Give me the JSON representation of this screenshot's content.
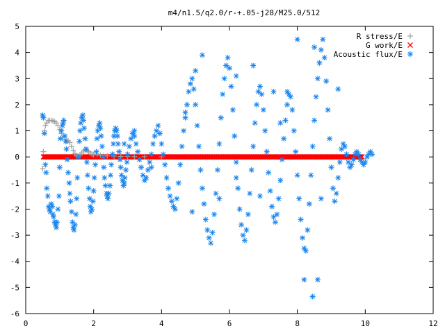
{
  "chart_data": {
    "type": "scatter",
    "title": "m4/n1.5/q2.0/r-+.05-j28/M25.0/512",
    "xlabel": "",
    "ylabel": "",
    "xlim": [
      0,
      12
    ],
    "ylim": [
      -6,
      5
    ],
    "xticks": [
      "0",
      "2",
      "4",
      "6",
      "8",
      "10",
      "12"
    ],
    "yticks": [
      "-6",
      "-5",
      "-4",
      "-3",
      "-2",
      "-1",
      "0",
      "1",
      "2",
      "3",
      "4",
      "5"
    ],
    "grid": false,
    "legend": "top-right",
    "series": [
      {
        "name": "R stress/E",
        "marker": "+",
        "color": "#a0a0a0",
        "points": [
          [
            0.5,
            -0.45
          ],
          [
            0.52,
            0.2
          ],
          [
            0.55,
            1.0
          ],
          [
            0.58,
            1.2
          ],
          [
            0.62,
            1.3
          ],
          [
            0.66,
            1.38
          ],
          [
            0.7,
            1.4
          ],
          [
            0.75,
            1.4
          ],
          [
            0.8,
            1.38
          ],
          [
            0.85,
            1.35
          ],
          [
            0.9,
            1.3
          ],
          [
            0.95,
            1.2
          ],
          [
            1.0,
            1.05
          ],
          [
            1.05,
            0.9
          ],
          [
            1.1,
            0.75
          ],
          [
            1.15,
            0.65
          ],
          [
            1.2,
            0.6
          ],
          [
            1.25,
            0.62
          ],
          [
            1.3,
            0.55
          ],
          [
            1.35,
            0.4
          ],
          [
            1.4,
            0.25
          ],
          [
            1.45,
            0.12
          ],
          [
            1.5,
            0.05
          ],
          [
            1.55,
            0.02
          ],
          [
            1.6,
            0.08
          ],
          [
            1.65,
            0.15
          ],
          [
            1.7,
            0.22
          ],
          [
            1.75,
            0.27
          ],
          [
            1.8,
            0.25
          ],
          [
            1.85,
            0.2
          ],
          [
            1.9,
            0.15
          ],
          [
            1.95,
            0.1
          ],
          [
            2.0,
            0.08
          ],
          [
            2.1,
            0.1
          ],
          [
            2.2,
            0.06
          ],
          [
            2.3,
            0.05
          ],
          [
            2.4,
            0.04
          ],
          [
            2.6,
            0.03
          ],
          [
            2.8,
            0.02
          ],
          [
            3.0,
            0.02
          ],
          [
            3.2,
            0.01
          ],
          [
            3.5,
            0.01
          ],
          [
            4.0,
            0.0
          ]
        ]
      },
      {
        "name": "G work/E",
        "marker": "x",
        "color": "#ff0000",
        "x_start": 0.52,
        "x_end": 9.9,
        "y": 0.0
      },
      {
        "name": "Acoustic flux/E",
        "marker": "*",
        "color": "#1c86ee",
        "points": [
          [
            0.5,
            1.6
          ],
          [
            0.52,
            1.5
          ],
          [
            0.55,
            0.9
          ],
          [
            0.58,
            -0.3
          ],
          [
            0.6,
            -0.6
          ],
          [
            0.62,
            -1.2
          ],
          [
            0.65,
            -1.5
          ],
          [
            0.68,
            -1.9
          ],
          [
            0.7,
            -2.0
          ],
          [
            0.72,
            -2.1
          ],
          [
            0.75,
            -1.8
          ],
          [
            0.78,
            -1.9
          ],
          [
            0.8,
            -2.2
          ],
          [
            0.82,
            -2.3
          ],
          [
            0.85,
            -2.5
          ],
          [
            0.88,
            -2.6
          ],
          [
            0.9,
            -2.7
          ],
          [
            0.92,
            -2.5
          ],
          [
            0.95,
            -2.0
          ],
          [
            0.98,
            -1.5
          ],
          [
            1.0,
            -0.4
          ],
          [
            1.02,
            0.7
          ],
          [
            1.05,
            1.0
          ],
          [
            1.08,
            1.2
          ],
          [
            1.1,
            1.3
          ],
          [
            1.12,
            1.4
          ],
          [
            1.15,
            0.8
          ],
          [
            1.18,
            0.6
          ],
          [
            1.2,
            0.3
          ],
          [
            1.22,
            -0.1
          ],
          [
            1.25,
            -0.6
          ],
          [
            1.28,
            -1.0
          ],
          [
            1.3,
            -1.4
          ],
          [
            1.32,
            -1.7
          ],
          [
            1.35,
            -2.1
          ],
          [
            1.38,
            -2.5
          ],
          [
            1.4,
            -2.7
          ],
          [
            1.42,
            -2.8
          ],
          [
            1.45,
            -2.6
          ],
          [
            1.48,
            -2.2
          ],
          [
            1.5,
            -1.6
          ],
          [
            1.52,
            -0.8
          ],
          [
            1.55,
            0.0
          ],
          [
            1.58,
            0.6
          ],
          [
            1.6,
            1.0
          ],
          [
            1.62,
            1.3
          ],
          [
            1.65,
            1.5
          ],
          [
            1.68,
            1.6
          ],
          [
            1.7,
            1.4
          ],
          [
            1.72,
            1.1
          ],
          [
            1.75,
            0.7
          ],
          [
            1.78,
            0.3
          ],
          [
            1.8,
            -0.2
          ],
          [
            1.82,
            -0.7
          ],
          [
            1.85,
            -1.2
          ],
          [
            1.88,
            -1.6
          ],
          [
            1.9,
            -1.9
          ],
          [
            1.92,
            -2.1
          ],
          [
            1.95,
            -2.0
          ],
          [
            1.98,
            -1.7
          ],
          [
            2.0,
            -1.3
          ],
          [
            2.02,
            -0.8
          ],
          [
            2.05,
            -0.3
          ],
          [
            2.08,
            0.2
          ],
          [
            2.1,
            0.7
          ],
          [
            2.12,
            1.0
          ],
          [
            2.15,
            1.2
          ],
          [
            2.18,
            1.3
          ],
          [
            2.2,
            1.1
          ],
          [
            2.22,
            0.8
          ],
          [
            2.25,
            0.4
          ],
          [
            2.28,
            0.0
          ],
          [
            2.3,
            -0.4
          ],
          [
            2.32,
            -0.8
          ],
          [
            2.35,
            -1.1
          ],
          [
            2.38,
            -1.4
          ],
          [
            2.4,
            -1.5
          ],
          [
            2.42,
            -1.6
          ],
          [
            2.45,
            -1.4
          ],
          [
            2.48,
            -1.1
          ],
          [
            2.5,
            -0.7
          ],
          [
            2.52,
            -0.3
          ],
          [
            2.55,
            0.1
          ],
          [
            2.58,
            0.5
          ],
          [
            2.6,
            0.8
          ],
          [
            2.62,
            1.0
          ],
          [
            2.65,
            1.1
          ],
          [
            2.68,
            1.0
          ],
          [
            2.7,
            0.8
          ],
          [
            2.72,
            0.5
          ],
          [
            2.75,
            0.2
          ],
          [
            2.78,
            -0.1
          ],
          [
            2.8,
            -0.4
          ],
          [
            2.82,
            -0.7
          ],
          [
            2.85,
            -0.9
          ],
          [
            2.88,
            -1.1
          ],
          [
            2.9,
            -1.0
          ],
          [
            2.92,
            -0.8
          ],
          [
            2.95,
            -0.5
          ],
          [
            2.98,
            -0.2
          ],
          [
            3.0,
            0.1
          ],
          [
            3.05,
            0.4
          ],
          [
            3.1,
            0.7
          ],
          [
            3.15,
            0.9
          ],
          [
            3.2,
            0.8
          ],
          [
            3.25,
            0.5
          ],
          [
            3.3,
            0.2
          ],
          [
            3.35,
            -0.1
          ],
          [
            3.4,
            -0.4
          ],
          [
            3.45,
            -0.7
          ],
          [
            3.5,
            -0.9
          ],
          [
            3.55,
            -0.8
          ],
          [
            3.6,
            -0.5
          ],
          [
            3.65,
            -0.2
          ],
          [
            3.7,
            0.1
          ],
          [
            3.75,
            0.5
          ],
          [
            3.8,
            0.8
          ],
          [
            3.85,
            1.0
          ],
          [
            3.9,
            1.2
          ],
          [
            3.95,
            0.9
          ],
          [
            4.0,
            0.5
          ],
          [
            4.05,
            0.1
          ],
          [
            4.1,
            -0.3
          ],
          [
            4.15,
            -0.8
          ],
          [
            4.2,
            -1.2
          ],
          [
            4.25,
            -1.5
          ],
          [
            4.3,
            -1.7
          ],
          [
            4.35,
            -1.9
          ],
          [
            4.4,
            -2.0
          ],
          [
            4.45,
            -1.6
          ],
          [
            4.5,
            -1.0
          ],
          [
            4.55,
            -0.3
          ],
          [
            4.6,
            0.4
          ],
          [
            4.65,
            1.0
          ],
          [
            4.7,
            1.5
          ],
          [
            4.75,
            2.0
          ],
          [
            4.8,
            2.5
          ],
          [
            4.85,
            2.8
          ],
          [
            4.9,
            3.0
          ],
          [
            4.95,
            2.6
          ],
          [
            5.0,
            2.0
          ],
          [
            5.05,
            1.2
          ],
          [
            5.1,
            0.4
          ],
          [
            5.15,
            -0.5
          ],
          [
            5.2,
            -1.2
          ],
          [
            5.25,
            -1.8
          ],
          [
            5.3,
            -2.4
          ],
          [
            5.35,
            -2.8
          ],
          [
            5.4,
            -3.1
          ],
          [
            5.45,
            -3.3
          ],
          [
            5.5,
            -2.9
          ],
          [
            5.55,
            -2.2
          ],
          [
            5.6,
            -1.4
          ],
          [
            5.65,
            -0.5
          ],
          [
            5.7,
            0.5
          ],
          [
            5.75,
            1.5
          ],
          [
            5.8,
            2.4
          ],
          [
            5.85,
            3.0
          ],
          [
            5.9,
            3.5
          ],
          [
            5.95,
            3.8
          ],
          [
            6.0,
            3.4
          ],
          [
            6.05,
            2.7
          ],
          [
            6.1,
            1.8
          ],
          [
            6.15,
            0.8
          ],
          [
            6.2,
            -0.2
          ],
          [
            6.25,
            -1.2
          ],
          [
            6.3,
            -2.0
          ],
          [
            6.35,
            -2.6
          ],
          [
            6.4,
            -3.0
          ],
          [
            6.45,
            -3.2
          ],
          [
            6.5,
            -2.8
          ],
          [
            6.55,
            -2.2
          ],
          [
            6.6,
            -1.4
          ],
          [
            6.65,
            -0.5
          ],
          [
            6.7,
            0.4
          ],
          [
            6.75,
            1.3
          ],
          [
            6.8,
            2.0
          ],
          [
            6.85,
            2.5
          ],
          [
            6.9,
            2.7
          ],
          [
            6.95,
            2.4
          ],
          [
            7.0,
            1.8
          ],
          [
            7.05,
            1.0
          ],
          [
            7.1,
            0.2
          ],
          [
            7.15,
            -0.6
          ],
          [
            7.2,
            -1.3
          ],
          [
            7.25,
            -1.9
          ],
          [
            7.3,
            -2.3
          ],
          [
            7.35,
            -2.5
          ],
          [
            7.4,
            -2.2
          ],
          [
            7.45,
            -1.6
          ],
          [
            7.5,
            -0.9
          ],
          [
            7.55,
            -0.1
          ],
          [
            7.6,
            0.7
          ],
          [
            7.65,
            1.4
          ],
          [
            7.7,
            2.0
          ],
          [
            7.75,
            2.4
          ],
          [
            7.8,
            2.3
          ],
          [
            7.85,
            1.8
          ],
          [
            7.9,
            1.0
          ],
          [
            7.95,
            0.2
          ],
          [
            8.0,
            -0.7
          ],
          [
            8.05,
            -1.6
          ],
          [
            8.1,
            -2.4
          ],
          [
            8.15,
            -3.1
          ],
          [
            8.2,
            -3.5
          ],
          [
            8.25,
            -3.6
          ],
          [
            8.3,
            -2.8
          ],
          [
            8.35,
            -1.8
          ],
          [
            8.4,
            -0.7
          ],
          [
            8.45,
            0.4
          ],
          [
            8.5,
            1.4
          ],
          [
            8.55,
            2.3
          ],
          [
            8.6,
            3.0
          ],
          [
            8.65,
            3.6
          ],
          [
            8.7,
            4.1
          ],
          [
            8.75,
            4.5
          ],
          [
            8.8,
            3.8
          ],
          [
            8.85,
            2.9
          ],
          [
            8.9,
            1.8
          ],
          [
            8.95,
            0.7
          ],
          [
            9.0,
            -0.4
          ],
          [
            9.05,
            -1.2
          ],
          [
            9.1,
            -1.7
          ],
          [
            9.15,
            -1.4
          ],
          [
            9.2,
            -0.8
          ],
          [
            9.25,
            -0.2
          ],
          [
            9.3,
            0.3
          ],
          [
            9.35,
            0.5
          ],
          [
            9.4,
            0.4
          ],
          [
            9.45,
            0.1
          ],
          [
            9.5,
            -0.2
          ],
          [
            9.55,
            -0.4
          ],
          [
            9.6,
            -0.3
          ],
          [
            9.65,
            -0.1
          ],
          [
            9.7,
            0.1
          ],
          [
            9.75,
            0.2
          ],
          [
            9.8,
            0.1
          ],
          [
            9.85,
            -0.1
          ],
          [
            9.9,
            -0.2
          ],
          [
            9.95,
            -0.3
          ],
          [
            10.0,
            -0.2
          ],
          [
            10.05,
            0.0
          ],
          [
            10.1,
            0.1
          ],
          [
            10.15,
            0.2
          ],
          [
            10.2,
            0.1
          ],
          [
            8.0,
            4.5
          ],
          [
            8.5,
            4.2
          ],
          [
            8.2,
            -4.7
          ],
          [
            8.45,
            -5.35
          ],
          [
            8.6,
            -4.7
          ],
          [
            6.2,
            3.1
          ],
          [
            5.2,
            3.9
          ],
          [
            5.0,
            3.3
          ],
          [
            7.7,
            2.5
          ],
          [
            4.7,
            1.7
          ],
          [
            9.2,
            2.6
          ],
          [
            7.3,
            2.5
          ],
          [
            6.7,
            3.5
          ],
          [
            7.5,
            1.3
          ],
          [
            6.2,
            -0.8
          ],
          [
            5.7,
            -1.6
          ],
          [
            6.9,
            -1.5
          ],
          [
            4.9,
            -2.1
          ],
          [
            8.7,
            -1.6
          ],
          [
            3.7,
            -0.4
          ],
          [
            3.2,
            1.0
          ],
          [
            2.9,
            0.5
          ]
        ]
      }
    ]
  }
}
